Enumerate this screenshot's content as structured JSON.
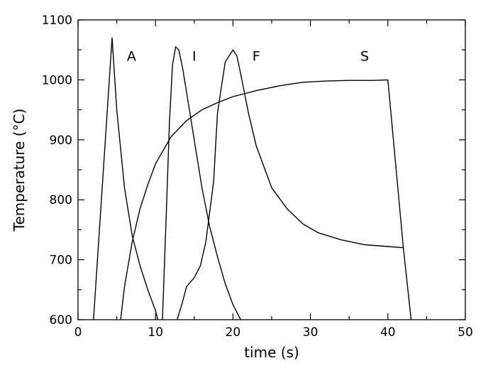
{
  "chart_data": {
    "type": "line",
    "title": "",
    "xlabel": "time  (s)",
    "ylabel": "Temperature  (°C)",
    "xlim": [
      0,
      50
    ],
    "ylim": [
      600,
      1100
    ],
    "xticks": [
      0,
      10,
      20,
      30,
      40,
      50
    ],
    "yticks": [
      600,
      700,
      800,
      900,
      1000,
      1100
    ],
    "grid": false,
    "legend": "none",
    "series": [
      {
        "name": "A",
        "x": [
          2.0,
          4.4,
          5.0,
          6.0,
          7.0,
          8.0,
          9.0,
          10.0,
          10.3
        ],
        "y": [
          600,
          1070,
          950,
          820,
          740,
          690,
          650,
          615,
          600
        ]
      },
      {
        "name": "I",
        "x": [
          10.9,
          11.4,
          11.8,
          12.2,
          12.6,
          13.0,
          13.5,
          14.0,
          15.0,
          16.0,
          17.0,
          18.0,
          19.0,
          20.0,
          21.0
        ],
        "y": [
          600,
          780,
          930,
          1025,
          1055,
          1050,
          1020,
          980,
          900,
          820,
          755,
          705,
          660,
          625,
          600
        ]
      },
      {
        "name": "F",
        "x": [
          12.8,
          13.5,
          14.0,
          15.0,
          15.8,
          16.5,
          17.5,
          18.0,
          19.0,
          20.0,
          20.5,
          21.0,
          22.0,
          23.0,
          25.0,
          27.0,
          29.0,
          31.0,
          34.0,
          37.0,
          40.0,
          42.0
        ],
        "y": [
          600,
          630,
          655,
          670,
          690,
          730,
          830,
          945,
          1030,
          1050,
          1040,
          1010,
          945,
          890,
          820,
          785,
          760,
          745,
          733,
          725,
          722,
          720
        ]
      },
      {
        "name": "S",
        "x": [
          5.5,
          6.0,
          7.0,
          8.0,
          9.0,
          10.0,
          12.0,
          14.0,
          16.0,
          18.0,
          20.0,
          23.0,
          26.0,
          29.0,
          32.0,
          35.0,
          38.0,
          40.0,
          41.0,
          42.0,
          43.0
        ],
        "y": [
          600,
          655,
          730,
          785,
          825,
          860,
          905,
          932,
          950,
          962,
          972,
          982,
          990,
          996,
          998,
          999,
          999,
          1000,
          860,
          720,
          600
        ]
      }
    ],
    "annotations": [
      {
        "text": "A",
        "x": 6.9,
        "y": 1040
      },
      {
        "text": "I",
        "x": 15.0,
        "y": 1040
      },
      {
        "text": "F",
        "x": 23.0,
        "y": 1040
      },
      {
        "text": "S",
        "x": 37.0,
        "y": 1040
      }
    ]
  }
}
